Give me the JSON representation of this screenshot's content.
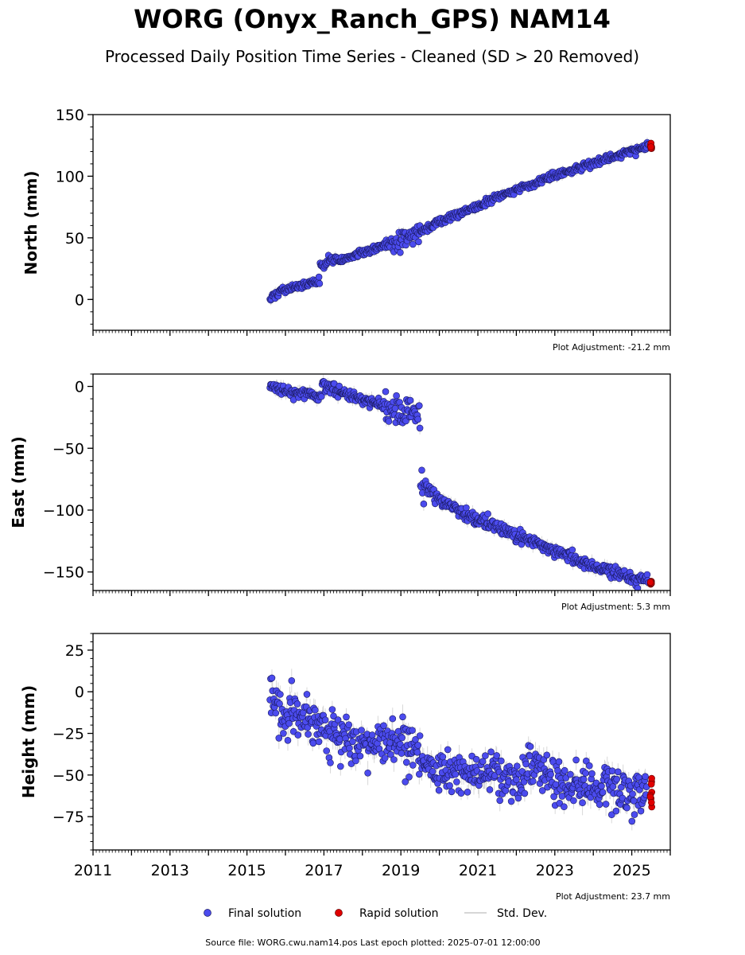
{
  "header": {
    "title": "WORG (Onyx_Ranch_GPS) NAM14",
    "subtitle": "Processed Daily Position Time Series - Cleaned (SD > 20 Removed)"
  },
  "footer": {
    "source": "Source file: WORG.cwu.nam14.pos  Last epoch plotted: 2025-07-01 12:00:00"
  },
  "legend": {
    "final": "Final solution",
    "rapid": "Rapid solution",
    "std": "Std. Dev."
  },
  "colors": {
    "final": "#4b4bee",
    "rapid": "#e00000",
    "std": "#c8c8c8"
  },
  "chart_data": [
    {
      "type": "scatter",
      "ylabel": "North (mm)",
      "ylim": [
        -25,
        150
      ],
      "yticks": [
        0,
        50,
        100,
        150
      ],
      "xlim": [
        2011.0,
        2026.0
      ],
      "adjustment": "Plot Adjustment: -21.2 mm",
      "show_xticklabels": false,
      "series": [
        {
          "kind": "final",
          "points": [
            [
              2015.6,
              0
            ],
            [
              2015.8,
              6
            ],
            [
              2016.0,
              8
            ],
            [
              2016.5,
              12
            ],
            [
              2016.9,
              15
            ],
            [
              2017.0,
              28
            ],
            [
              2017.2,
              33
            ],
            [
              2017.5,
              33
            ],
            [
              2018.0,
              38
            ],
            [
              2018.5,
              43
            ],
            [
              2018.8,
              45
            ],
            [
              2019.0,
              48
            ],
            [
              2019.5,
              55
            ],
            [
              2020.0,
              63
            ],
            [
              2020.5,
              70
            ],
            [
              2021.0,
              76
            ],
            [
              2021.5,
              83
            ],
            [
              2022.0,
              89
            ],
            [
              2022.5,
              95
            ],
            [
              2023.0,
              101
            ],
            [
              2023.5,
              106
            ],
            [
              2024.0,
              111
            ],
            [
              2024.5,
              116
            ],
            [
              2025.0,
              120
            ],
            [
              2025.45,
              125
            ]
          ]
        },
        {
          "kind": "rapid",
          "points": [
            [
              2025.5,
              124
            ]
          ]
        }
      ]
    },
    {
      "type": "scatter",
      "ylabel": "East (mm)",
      "ylim": [
        -165,
        10
      ],
      "yticks": [
        0,
        -50,
        -100,
        -150
      ],
      "xlim": [
        2011.0,
        2026.0
      ],
      "adjustment": "Plot Adjustment: 5.3 mm",
      "show_xticklabels": false,
      "series": [
        {
          "kind": "final",
          "points": [
            [
              2015.6,
              0
            ],
            [
              2016.0,
              -3
            ],
            [
              2016.5,
              -5
            ],
            [
              2016.95,
              -9
            ],
            [
              2017.05,
              0
            ],
            [
              2017.5,
              -5
            ],
            [
              2018.0,
              -10
            ],
            [
              2018.5,
              -15
            ],
            [
              2018.8,
              -20
            ],
            [
              2019.0,
              -22
            ],
            [
              2019.5,
              -25
            ],
            [
              2019.6,
              -80
            ],
            [
              2020.0,
              -92
            ],
            [
              2020.5,
              -100
            ],
            [
              2021.0,
              -108
            ],
            [
              2021.5,
              -114
            ],
            [
              2022.0,
              -120
            ],
            [
              2022.5,
              -126
            ],
            [
              2023.0,
              -133
            ],
            [
              2023.5,
              -139
            ],
            [
              2024.0,
              -145
            ],
            [
              2024.5,
              -150
            ],
            [
              2025.0,
              -155
            ],
            [
              2025.45,
              -158
            ]
          ]
        },
        {
          "kind": "rapid",
          "points": [
            [
              2025.5,
              -159
            ]
          ]
        }
      ]
    },
    {
      "type": "scatter",
      "ylabel": "Height (mm)",
      "ylim": [
        -95,
        35
      ],
      "yticks": [
        25,
        0,
        -25,
        -50,
        -75
      ],
      "xlim": [
        2011.0,
        2026.0
      ],
      "xticks": [
        2011,
        2013,
        2015,
        2017,
        2019,
        2021,
        2023,
        2025
      ],
      "adjustment": "Plot Adjustment: 23.7 mm",
      "show_xticklabels": true,
      "series": [
        {
          "kind": "final",
          "points": [
            [
              2015.6,
              0
            ],
            [
              2015.8,
              -12
            ],
            [
              2016.0,
              -15
            ],
            [
              2016.5,
              -15
            ],
            [
              2017.0,
              -22
            ],
            [
              2017.5,
              -28
            ],
            [
              2018.0,
              -30
            ],
            [
              2018.5,
              -30
            ],
            [
              2019.0,
              -30
            ],
            [
              2019.5,
              -40
            ],
            [
              2020.0,
              -48
            ],
            [
              2020.5,
              -50
            ],
            [
              2021.0,
              -50
            ],
            [
              2021.5,
              -50
            ],
            [
              2022.0,
              -50
            ],
            [
              2022.5,
              -45
            ],
            [
              2023.0,
              -55
            ],
            [
              2023.5,
              -57
            ],
            [
              2024.0,
              -58
            ],
            [
              2024.5,
              -58
            ],
            [
              2025.0,
              -60
            ],
            [
              2025.4,
              -62
            ]
          ]
        },
        {
          "kind": "rapid",
          "points": [
            [
              2025.5,
              -65
            ]
          ]
        }
      ]
    }
  ]
}
